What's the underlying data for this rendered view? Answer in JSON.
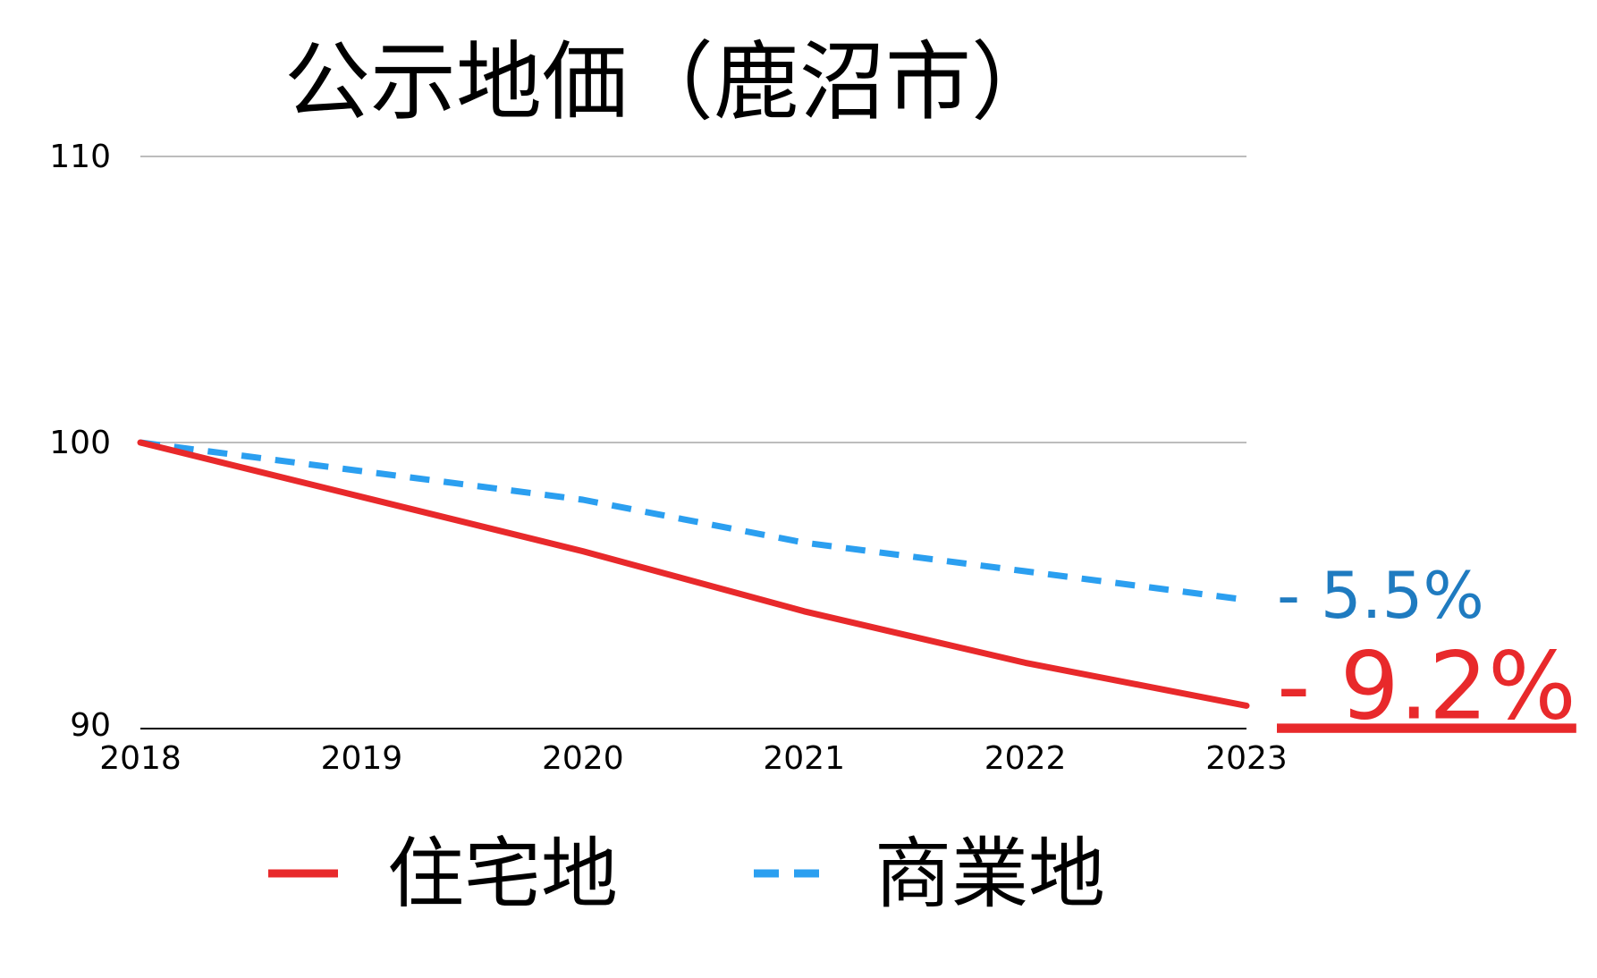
{
  "chart_data": {
    "type": "line",
    "title": "公示地価（鹿沼市）",
    "categories": [
      "2018",
      "2019",
      "2020",
      "2021",
      "2022",
      "2023"
    ],
    "ylim": [
      90,
      110
    ],
    "yticks": [
      "90",
      "100",
      "110"
    ],
    "grid": true,
    "legend_position": "bottom",
    "series": [
      {
        "name": "住宅地",
        "values": [
          100,
          98.1,
          96.2,
          94.1,
          92.3,
          90.8
        ],
        "color": "#e8292b",
        "style": "solid",
        "end_label": "- 9.2%"
      },
      {
        "name": "商業地",
        "values": [
          100,
          99.0,
          98.0,
          96.5,
          95.5,
          94.5
        ],
        "color": "#2b9ff0",
        "style": "dashed",
        "end_label": "- 5.5%",
        "end_label_color": "#1f7bc0"
      }
    ]
  }
}
